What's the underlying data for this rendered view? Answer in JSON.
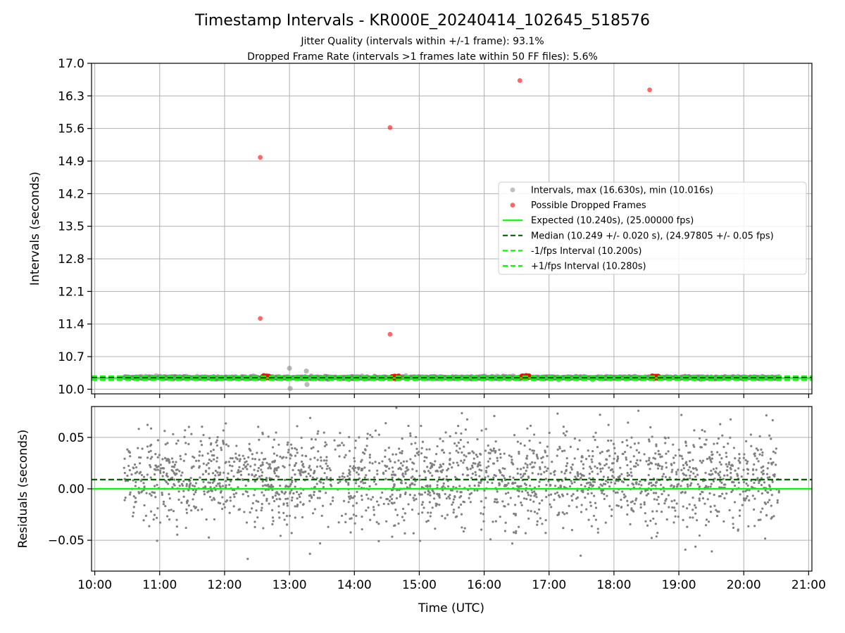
{
  "chart_data": [
    {
      "type": "scatter",
      "panel": "intervals",
      "title": "Timestamp Intervals - KR000E_20240414_102645_518576",
      "subtitle_lines": [
        "Jitter Quality (intervals within +/-1 frame): 93.1%",
        "Dropped Frame Rate (intervals >1 frames late within 50 FF files): 5.6%"
      ],
      "ylabel": "Intervals (seconds)",
      "ylim": [
        9.9,
        17.0
      ],
      "yticks": [
        "10.0",
        "10.7",
        "11.4",
        "12.1",
        "12.8",
        "13.5",
        "14.2",
        "14.9",
        "15.6",
        "16.3",
        "17.0"
      ],
      "ytick_values": [
        10.0,
        10.7,
        11.4,
        12.1,
        12.8,
        13.5,
        14.2,
        14.9,
        15.6,
        16.3,
        17.0
      ],
      "xlim_hours": [
        9.95,
        21.05
      ],
      "grid": true,
      "legend_position": "center-right",
      "series": [
        {
          "name": "Intervals, max (16.630s), min (10.016s)",
          "kind": "scatter",
          "color": "#808080",
          "band": {
            "x_start_hours": 10.45,
            "x_end_hours": 20.55,
            "center": 10.249,
            "spread": 0.035,
            "count": 2200
          },
          "outliers": [
            {
              "x_hours": 13.0,
              "y": 10.45
            },
            {
              "x_hours": 13.01,
              "y": 10.016
            },
            {
              "x_hours": 13.26,
              "y": 10.39
            },
            {
              "x_hours": 13.27,
              "y": 10.1
            }
          ]
        },
        {
          "name": "Possible Dropped Frames",
          "kind": "scatter",
          "color": "#ff0000",
          "points": [
            {
              "x_hours": 12.55,
              "y": 11.52
            },
            {
              "x_hours": 12.55,
              "y": 14.98
            },
            {
              "x_hours": 14.55,
              "y": 11.18
            },
            {
              "x_hours": 14.55,
              "y": 15.62
            },
            {
              "x_hours": 16.55,
              "y": 16.63
            },
            {
              "x_hours": 18.55,
              "y": 16.43
            }
          ],
          "clusters": [
            {
              "x_start_hours": 12.57,
              "x_end_hours": 12.7,
              "y": 10.26
            },
            {
              "x_start_hours": 14.57,
              "x_end_hours": 14.7,
              "y": 10.26
            },
            {
              "x_start_hours": 16.57,
              "x_end_hours": 16.7,
              "y": 10.27
            },
            {
              "x_start_hours": 18.57,
              "x_end_hours": 18.7,
              "y": 10.26
            }
          ]
        },
        {
          "name": "Expected (10.240s), (25.00000 fps)",
          "kind": "hline",
          "y": 10.24,
          "color": "#00ff00",
          "style": "solid"
        },
        {
          "name": "Median (10.249 +/- 0.020 s), (24.97805 +/- 0.05 fps)",
          "kind": "hline",
          "y": 10.249,
          "color": "#006400",
          "style": "dashed"
        },
        {
          "name": "-1/fps Interval (10.200s)",
          "kind": "hline",
          "y": 10.2,
          "color": "#00ff00",
          "style": "dashed"
        },
        {
          "name": "+1/fps Interval (10.280s)",
          "kind": "hline",
          "y": 10.28,
          "color": "#00ff00",
          "style": "dashed"
        }
      ]
    },
    {
      "type": "scatter",
      "panel": "residuals",
      "xlabel": "Time (UTC)",
      "ylabel": "Residuals (seconds)",
      "ylim": [
        -0.08,
        0.08
      ],
      "yticks": [
        "0.05",
        "0.00",
        "−0.05"
      ],
      "ytick_values": [
        0.05,
        0.0,
        -0.05
      ],
      "xlim_hours": [
        9.95,
        21.05
      ],
      "xticks": [
        "10:00",
        "11:00",
        "12:00",
        "13:00",
        "14:00",
        "15:00",
        "16:00",
        "17:00",
        "18:00",
        "19:00",
        "20:00",
        "21:00"
      ],
      "xtick_values_hours": [
        10,
        11,
        12,
        13,
        14,
        15,
        16,
        17,
        18,
        19,
        20,
        21
      ],
      "grid": true,
      "series": [
        {
          "kind": "scatter",
          "color": "#808080",
          "band": {
            "x_start_hours": 10.45,
            "x_end_hours": 20.55,
            "center": 0.009,
            "spread": 0.025,
            "count": 2200
          }
        },
        {
          "kind": "hline",
          "y": 0.0,
          "color": "#00ff00",
          "style": "solid"
        },
        {
          "kind": "hline",
          "y": 0.009,
          "color": "#006400",
          "style": "dashed"
        }
      ]
    }
  ]
}
